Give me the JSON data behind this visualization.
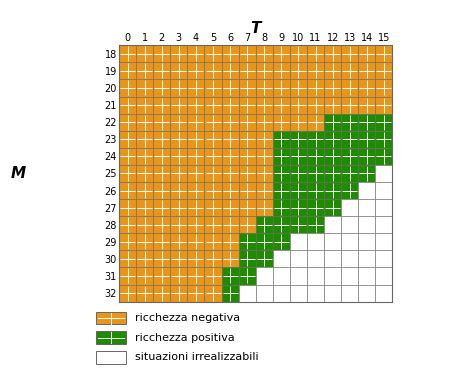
{
  "T_values": [
    0,
    1,
    2,
    3,
    4,
    5,
    6,
    7,
    8,
    9,
    10,
    11,
    12,
    13,
    14,
    15
  ],
  "M_values": [
    18,
    19,
    20,
    21,
    22,
    23,
    24,
    25,
    26,
    27,
    28,
    29,
    30,
    31,
    32
  ],
  "title_T": "T",
  "title_M": "M",
  "orange_color": "#E8951A",
  "green_color": "#1E8B00",
  "white_color": "#FFFFFF",
  "cell_colors": [
    [
      "O",
      "O",
      "O",
      "O",
      "O",
      "O",
      "O",
      "O",
      "O",
      "O",
      "O",
      "O",
      "O",
      "O",
      "O",
      "O"
    ],
    [
      "O",
      "O",
      "O",
      "O",
      "O",
      "O",
      "O",
      "O",
      "O",
      "O",
      "O",
      "O",
      "O",
      "O",
      "O",
      "O"
    ],
    [
      "O",
      "O",
      "O",
      "O",
      "O",
      "O",
      "O",
      "O",
      "O",
      "O",
      "O",
      "O",
      "O",
      "O",
      "O",
      "O"
    ],
    [
      "O",
      "O",
      "O",
      "O",
      "O",
      "O",
      "O",
      "O",
      "O",
      "O",
      "O",
      "O",
      "O",
      "O",
      "O",
      "O"
    ],
    [
      "O",
      "O",
      "O",
      "O",
      "O",
      "O",
      "O",
      "O",
      "O",
      "O",
      "O",
      "O",
      "G",
      "G",
      "G",
      "G"
    ],
    [
      "O",
      "O",
      "O",
      "O",
      "O",
      "O",
      "O",
      "O",
      "O",
      "G",
      "G",
      "G",
      "G",
      "G",
      "G",
      "G"
    ],
    [
      "O",
      "O",
      "O",
      "O",
      "O",
      "O",
      "O",
      "O",
      "O",
      "G",
      "G",
      "G",
      "G",
      "G",
      "G",
      "G"
    ],
    [
      "O",
      "O",
      "O",
      "O",
      "O",
      "O",
      "O",
      "O",
      "O",
      "G",
      "G",
      "G",
      "G",
      "G",
      "G",
      "W"
    ],
    [
      "O",
      "O",
      "O",
      "O",
      "O",
      "O",
      "O",
      "O",
      "O",
      "G",
      "G",
      "G",
      "G",
      "G",
      "W",
      "W"
    ],
    [
      "O",
      "O",
      "O",
      "O",
      "O",
      "O",
      "O",
      "O",
      "O",
      "G",
      "G",
      "G",
      "G",
      "W",
      "W",
      "W"
    ],
    [
      "O",
      "O",
      "O",
      "O",
      "O",
      "O",
      "O",
      "O",
      "G",
      "G",
      "G",
      "G",
      "W",
      "W",
      "W",
      "W"
    ],
    [
      "O",
      "O",
      "O",
      "O",
      "O",
      "O",
      "O",
      "G",
      "G",
      "G",
      "W",
      "W",
      "W",
      "W",
      "W",
      "W"
    ],
    [
      "O",
      "O",
      "O",
      "O",
      "O",
      "O",
      "O",
      "G",
      "G",
      "W",
      "W",
      "W",
      "W",
      "W",
      "W",
      "W"
    ],
    [
      "O",
      "O",
      "O",
      "O",
      "O",
      "O",
      "G",
      "G",
      "W",
      "W",
      "W",
      "W",
      "W",
      "W",
      "W",
      "W"
    ],
    [
      "O",
      "O",
      "O",
      "O",
      "O",
      "O",
      "G",
      "W",
      "W",
      "W",
      "W",
      "W",
      "W",
      "W",
      "W",
      "W"
    ]
  ],
  "legend_labels": [
    "ricchezza negativa",
    "ricchezza positiva",
    "situazioni irrealizzabili"
  ],
  "legend_colors": [
    "#E8951A",
    "#1E8B00",
    "#FFFFFF"
  ],
  "inner_line_color": "#FFFFFF",
  "border_color": "#666666",
  "tick_fontsize": 7,
  "label_fontsize": 11
}
